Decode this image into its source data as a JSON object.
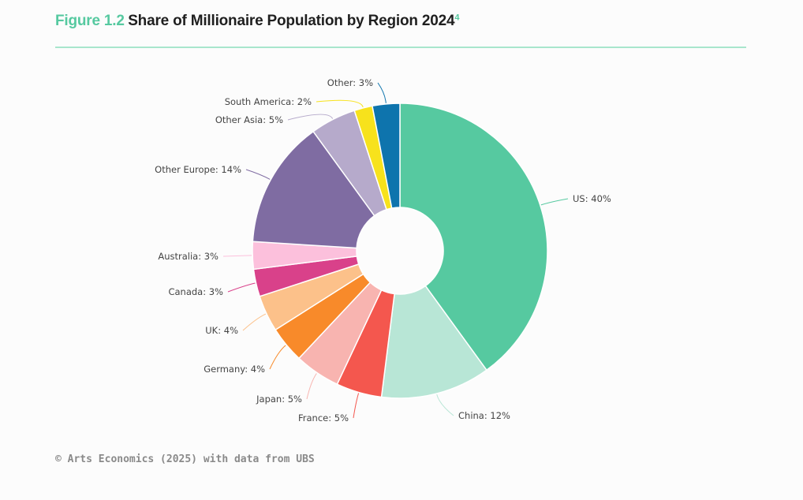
{
  "header": {
    "figure_label": "Figure 1.2",
    "title": "Share of Millionaire Population by Region 2024",
    "note_marker": "4"
  },
  "source": "© Arts Economics (2025) with data from UBS",
  "colors": {
    "accent": "#56c9a0",
    "rule": "#a8e6cc"
  },
  "chart_data": {
    "type": "pie",
    "variant": "donut",
    "title": "Share of Millionaire Population by Region 2024",
    "unit": "%",
    "slices": [
      {
        "name": "US",
        "value": 40,
        "label": "US: 40%",
        "color": "#56c9a0"
      },
      {
        "name": "China",
        "value": 12,
        "label": "China: 12%",
        "color": "#b8e6d6"
      },
      {
        "name": "France",
        "value": 5,
        "label": "France: 5%",
        "color": "#f4574e"
      },
      {
        "name": "Japan",
        "value": 5,
        "label": "Japan: 5%",
        "color": "#f8b4b0"
      },
      {
        "name": "Germany",
        "value": 4,
        "label": "Germany: 4%",
        "color": "#f88a2a"
      },
      {
        "name": "UK",
        "value": 4,
        "label": "UK: 4%",
        "color": "#fcc18a"
      },
      {
        "name": "Canada",
        "value": 3,
        "label": "Canada: 3%",
        "color": "#d9418a"
      },
      {
        "name": "Australia",
        "value": 3,
        "label": "Australia: 3%",
        "color": "#fcc0dc"
      },
      {
        "name": "Other Europe",
        "value": 14,
        "label": "Other Europe: 14%",
        "color": "#7f6ca2"
      },
      {
        "name": "Other Asia",
        "value": 5,
        "label": "Other Asia: 5%",
        "color": "#b6aacb"
      },
      {
        "name": "South America",
        "value": 2,
        "label": "South America: 2%",
        "color": "#f7e21c"
      },
      {
        "name": "Other",
        "value": 3,
        "label": "Other: 3%",
        "color": "#0e74ad"
      }
    ],
    "start": "12 o'clock",
    "direction": "clockwise",
    "legend": "none (leader-line labels)"
  }
}
